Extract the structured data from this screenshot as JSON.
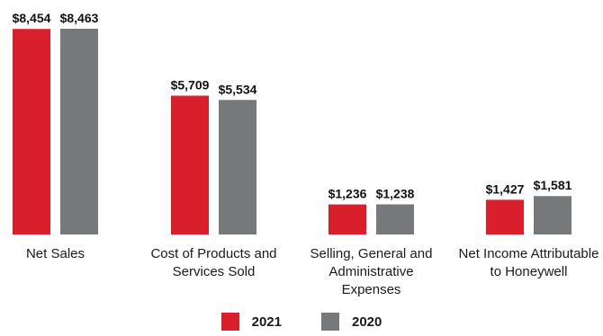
{
  "chart_data": {
    "type": "bar",
    "categories": [
      "Net Sales",
      "Cost of Products and Services Sold",
      "Selling, General and Administrative Expenses",
      "Net Income Attributable to Honeywell"
    ],
    "category_lines": [
      [
        "Net Sales"
      ],
      [
        "Cost of Products and",
        "Services Sold"
      ],
      [
        "Selling, General and",
        "Administrative",
        "Expenses"
      ],
      [
        "Net Income Attributable",
        "to Honeywell"
      ]
    ],
    "series": [
      {
        "name": "2021",
        "color": "#d91f2b",
        "values": [
          8454,
          5709,
          1236,
          1427
        ],
        "labels": [
          "$8,454",
          "$5,709",
          "$1,236",
          "$1,427"
        ]
      },
      {
        "name": "2020",
        "color": "#76787a",
        "values": [
          8463,
          5534,
          1238,
          1581
        ],
        "labels": [
          "$8,463",
          "$5,534",
          "$1,238",
          "$1,581"
        ]
      }
    ],
    "ylim": [
      0,
      8463
    ],
    "grid": false,
    "legend": {
      "position": "bottom-center",
      "items": [
        "2021",
        "2020"
      ]
    }
  }
}
